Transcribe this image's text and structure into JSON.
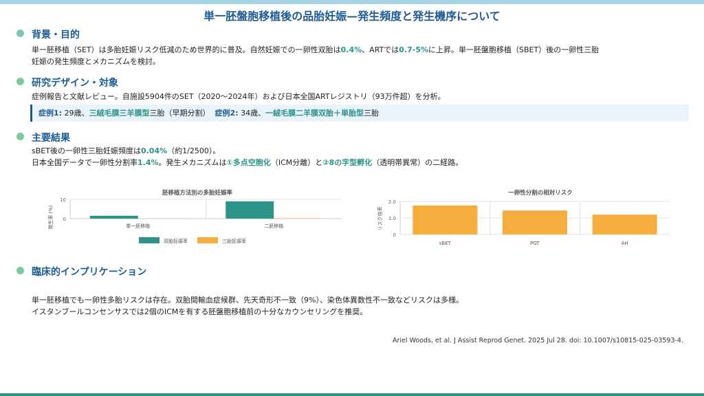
{
  "title": "単一胚盤胞移植後の品胎妊娠—発生頻度と発生機序について",
  "sections": {
    "background": {
      "heading": "背景・目的",
      "line1_a": "単一胚移植（SET）は多胎妊娠リスク低減のため世界的に普及。自然妊娠での一卵性双胎は",
      "line1_hl1": "0.4%",
      "line1_b": "、ARTでは",
      "line1_hl2": "0.7-5%",
      "line1_c": "に上昇。単一胚盤胞移植（SBET）後の一卵性三胎",
      "line2": "妊娠の発生頻度とメカニズムを検討。"
    },
    "design": {
      "heading": "研究デザイン・対象",
      "line1": "症例報告と文献レビュー。自施設5904件のSET（2020〜2024年）および日本全国ARTレジストリ（93万件超）を分析。",
      "case1_label": "症例1:",
      "case1_a": " 29歳、",
      "case1_hl": "三絨毛膜三羊膜型",
      "case1_b": "三胎（早期分割）",
      "case2_label": "症例2:",
      "case2_a": " 34歳、",
      "case2_hl": "一絨毛膜二羊膜双胎＋単胎型",
      "case2_b": "三胎"
    },
    "results": {
      "heading": "主要結果",
      "line1_a": "sBET後の一卵性三胎妊娠頻度は",
      "line1_hl": "0.04%",
      "line1_b": "（約1/2500）。",
      "line2_a": "日本全国データで一卵性分割率",
      "line2_hl1": "1.4%",
      "line2_b": "。発生メカニズムは",
      "line2_hl2": "①多点空胞化",
      "line2_c": "（ICM分離）と",
      "line2_hl3": "②8の字型孵化",
      "line2_d": "（透明帯異常）の二経路。"
    },
    "implications": {
      "heading": "臨床的インプリケーション",
      "line1": "単一胚移植でも一卵性多胎リスクは存在。双胎間輸血症候群、先天奇形不一致（9%）、染色体異数性不一致などリスクは多様。",
      "line2": "イスタンブールコンセンサスでは2個のICMを有する胚盤胞移植前の十分なカウンセリングを推奨。"
    }
  },
  "citation": "Ariel Woods, et al. J Assist Reprod Genet. 2025 Jul 28.  doi: 10.1007/s10815-025-03593-4.",
  "colors": {
    "teal": "#2f9488",
    "orange": "#f5ae3d",
    "navy": "#1f5b93"
  },
  "chart_data": [
    {
      "type": "bar",
      "title": "胚移植方法別の多胎妊娠率",
      "ylabel": "発生率 (%)",
      "categories": [
        "単一胚移植",
        "二胚移植"
      ],
      "series": [
        {
          "name": "双胎妊娠率",
          "values": [
            1.5,
            9.0
          ]
        },
        {
          "name": "三胎妊娠率",
          "values": [
            0.04,
            0.2
          ]
        }
      ],
      "ylim": [
        0,
        10
      ],
      "yticks": [
        "0",
        "10"
      ],
      "grid": true,
      "legend": "bottom"
    },
    {
      "type": "bar",
      "title": "一卵性分割の相対リスク",
      "ylabel": "リスク倍率",
      "categories": [
        "sBET",
        "PGT",
        "AH"
      ],
      "series": [
        {
          "values": [
            1.75,
            1.45,
            1.2
          ]
        }
      ],
      "ylim": [
        0,
        2
      ],
      "yticks": [
        "0",
        "1.0",
        "2.0"
      ],
      "grid": true
    }
  ]
}
